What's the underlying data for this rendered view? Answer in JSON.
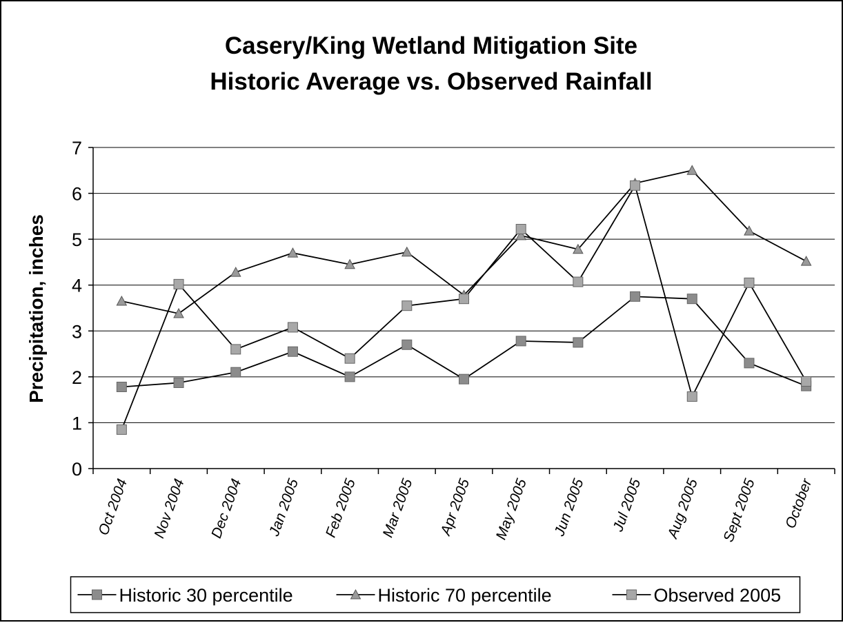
{
  "chart_data": {
    "type": "line",
    "title": [
      "Casery/King Wetland Mitigation Site",
      "Historic Average vs. Observed Rainfall"
    ],
    "y_label": "Precipitation, inches",
    "categories": [
      "Oct 2004",
      "Nov 2004",
      "Dec 2004",
      "Jan 2005",
      "Feb 2005",
      "Mar 2005",
      "Apr 2005",
      "May 2005",
      "Jun 2005",
      "Jul 2005",
      "Aug 2005",
      "Sept 2005",
      "October"
    ],
    "series": [
      {
        "name": "Historic 30 percentile",
        "color": "#8c8c8c",
        "marker": "square",
        "values": [
          1.78,
          1.87,
          2.1,
          2.55,
          2.0,
          2.7,
          1.95,
          2.78,
          2.75,
          3.75,
          3.7,
          2.3,
          1.8
        ]
      },
      {
        "name": "Historic 70 percentile",
        "color": "#9a9a9a",
        "marker": "triangle",
        "values": [
          3.65,
          3.38,
          4.28,
          4.7,
          4.45,
          4.72,
          3.78,
          5.08,
          4.78,
          6.22,
          6.5,
          5.18,
          4.52
        ]
      },
      {
        "name": "Observed 2005",
        "color": "#a8a8a8",
        "marker": "square",
        "values": [
          0.85,
          4.02,
          2.6,
          3.08,
          2.4,
          3.55,
          3.7,
          5.22,
          4.07,
          6.17,
          1.57,
          4.05,
          1.9
        ]
      }
    ],
    "ylim": [
      0,
      7
    ],
    "yticks": [
      0,
      1,
      2,
      3,
      4,
      5,
      6,
      7
    ],
    "grid": true,
    "legend": "bottom"
  }
}
